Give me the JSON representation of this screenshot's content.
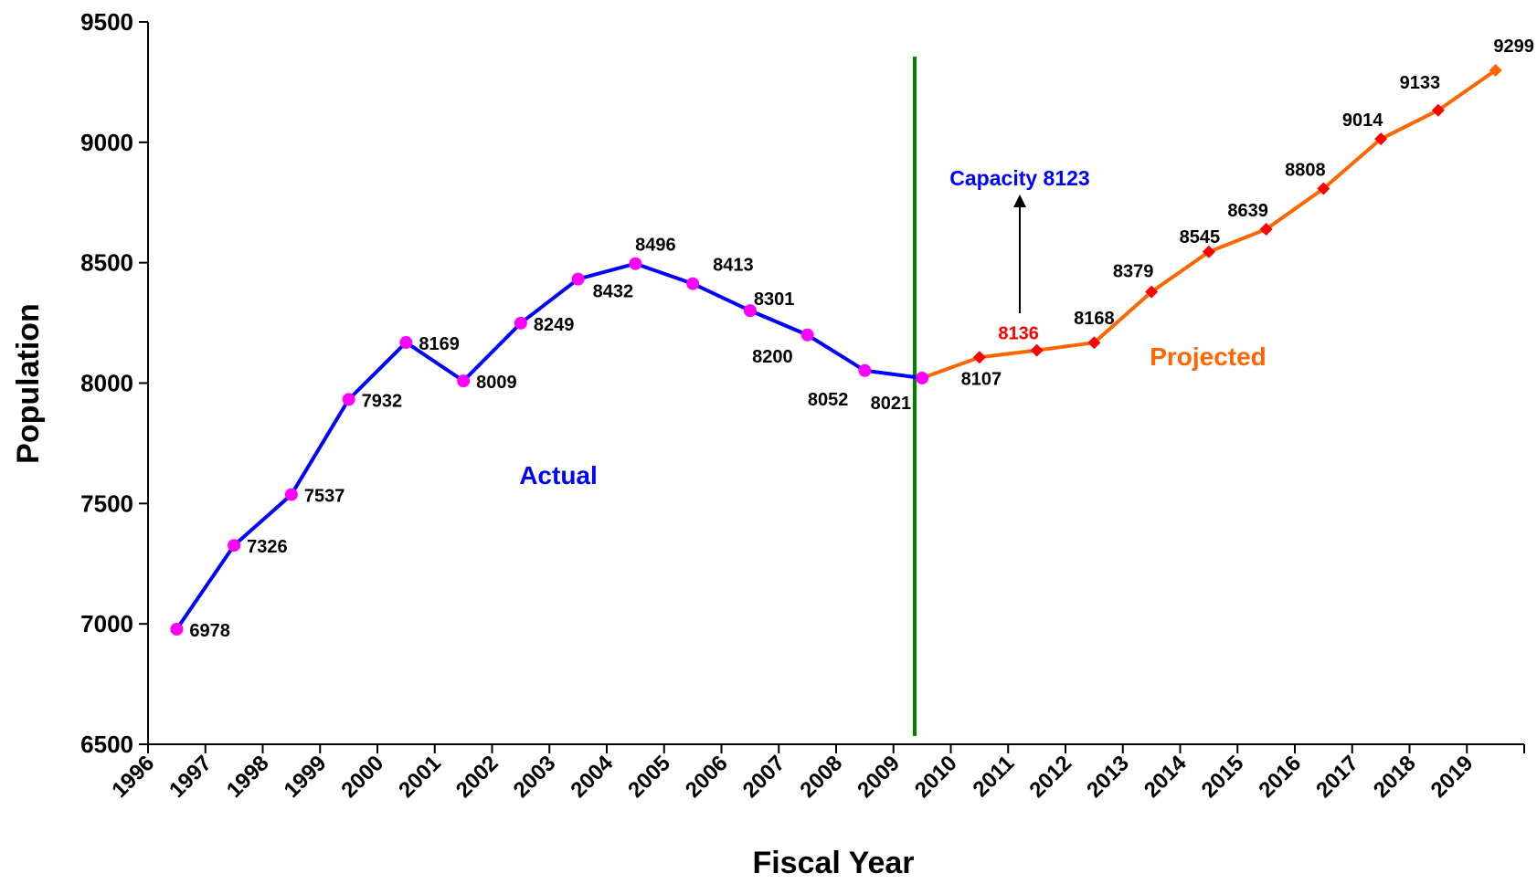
{
  "chart_data": {
    "type": "line",
    "title": "",
    "xlabel": "Fiscal Year",
    "ylabel": "Population",
    "ylim": [
      6500,
      9500
    ],
    "y_ticks": [
      6500,
      7000,
      7500,
      8000,
      8500,
      9000,
      9500
    ],
    "x_ticks": [
      "1996",
      "1997",
      "1998",
      "1999",
      "2000",
      "2001",
      "2002",
      "2003",
      "2004",
      "2005",
      "2006",
      "2007",
      "2008",
      "2009",
      "2010",
      "2011",
      "2012",
      "2013",
      "2014",
      "2015",
      "2016",
      "2017",
      "2018",
      "2019"
    ],
    "grid": false,
    "series": [
      {
        "name": "Actual",
        "color": "#0000ff",
        "marker": "circle",
        "marker_color": "#ff00ff",
        "x": [
          "1996",
          "1997",
          "1998",
          "1999",
          "2000",
          "2001",
          "2002",
          "2003",
          "2004",
          "2005",
          "2006",
          "2007",
          "2008",
          "2009"
        ],
        "values": [
          6978,
          7326,
          7537,
          7932,
          8169,
          8009,
          8249,
          8432,
          8496,
          8413,
          8301,
          8200,
          8052,
          8021
        ]
      },
      {
        "name": "Projected",
        "color": "#ff6600",
        "marker": "diamond",
        "marker_color": "#ff0000",
        "x": [
          "2010",
          "2011",
          "2012",
          "2013",
          "2014",
          "2015",
          "2016",
          "2017",
          "2018",
          "2019"
        ],
        "values": [
          8107,
          8136,
          8168,
          8379,
          8545,
          8639,
          8808,
          9014,
          9133,
          9299
        ]
      }
    ],
    "annotations": {
      "capacity_label": "Capacity 8123",
      "capacity_color": "#0000ff",
      "divider_color": "#008000",
      "highlight_value_color": "#ff0000"
    }
  }
}
